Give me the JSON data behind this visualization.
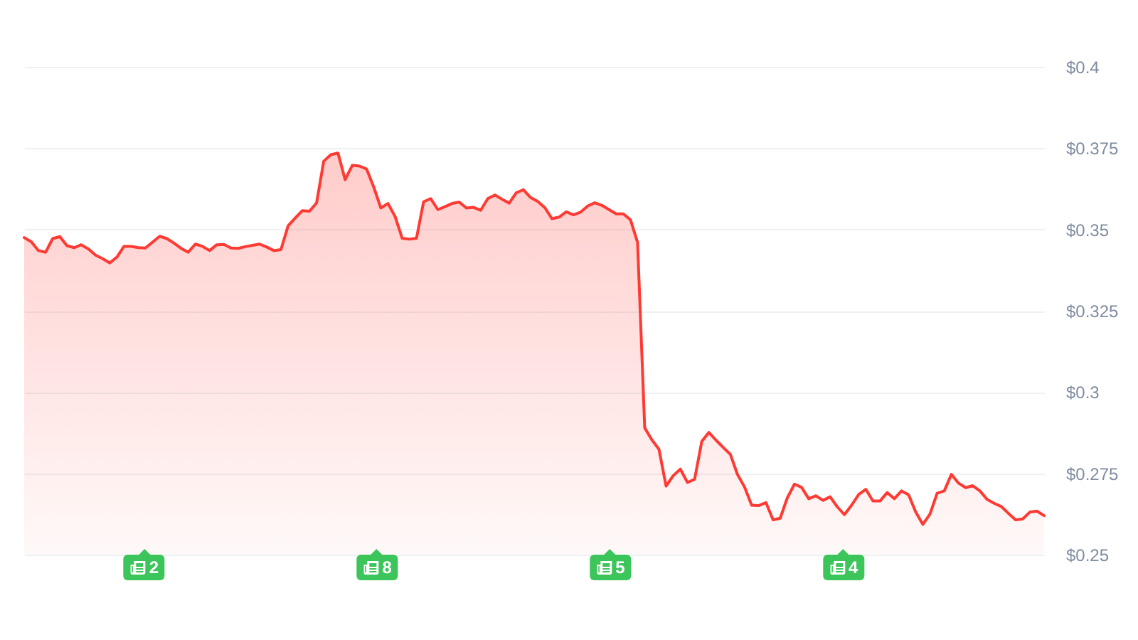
{
  "chart_data": {
    "type": "area",
    "categories": [
      null,
      null,
      null,
      null,
      null,
      null,
      null,
      null,
      null,
      null,
      null,
      null,
      null,
      null,
      null,
      null,
      null,
      null,
      null,
      null,
      null,
      null,
      null,
      null,
      null,
      null,
      null,
      null,
      null,
      null,
      null,
      null,
      null,
      null,
      null,
      null,
      null,
      null,
      null,
      null,
      null,
      null,
      null,
      null,
      null,
      null,
      null,
      null,
      null,
      null,
      null,
      null,
      null,
      null,
      null,
      null,
      null,
      null,
      null,
      null,
      null,
      null,
      null,
      null,
      null,
      null,
      null,
      null,
      null,
      null,
      null,
      null,
      null,
      null,
      null,
      null,
      null,
      null,
      null,
      null,
      null,
      null,
      null,
      null,
      null,
      null,
      null,
      null,
      null,
      null,
      null,
      null,
      null,
      null,
      null,
      null,
      null,
      null,
      null,
      null,
      null,
      null,
      null,
      null,
      null,
      null,
      null,
      null,
      null,
      null,
      null,
      null,
      null,
      null,
      null,
      null,
      null,
      null,
      null,
      null,
      null,
      null,
      null,
      null,
      null,
      null,
      null,
      null,
      null,
      null,
      null,
      null,
      null,
      null,
      null,
      null,
      null,
      null,
      null,
      null,
      null,
      null,
      null,
      null
    ],
    "values": [
      0.3475,
      0.3462,
      0.3435,
      0.343,
      0.3472,
      0.3478,
      0.345,
      0.3444,
      0.3453,
      0.344,
      0.3421,
      0.341,
      0.3397,
      0.3415,
      0.3448,
      0.3448,
      0.3444,
      0.3443,
      0.3461,
      0.3479,
      0.3472,
      0.3458,
      0.3442,
      0.343,
      0.3455,
      0.3448,
      0.3435,
      0.3453,
      0.3454,
      0.3443,
      0.3442,
      0.3447,
      0.3451,
      0.3455,
      0.3446,
      0.3435,
      0.3438,
      0.3511,
      0.3535,
      0.3558,
      0.3556,
      0.3582,
      0.371,
      0.373,
      0.3735,
      0.3653,
      0.3697,
      0.3695,
      0.3686,
      0.3631,
      0.3566,
      0.358,
      0.354,
      0.3473,
      0.347,
      0.3473,
      0.3585,
      0.3595,
      0.3561,
      0.357,
      0.358,
      0.3584,
      0.3566,
      0.3568,
      0.3559,
      0.3595,
      0.3606,
      0.3593,
      0.3581,
      0.3613,
      0.3622,
      0.3598,
      0.3586,
      0.3567,
      0.3533,
      0.3538,
      0.3554,
      0.3545,
      0.3553,
      0.3572,
      0.3582,
      0.3574,
      0.3561,
      0.3548,
      0.3548,
      0.353,
      0.346,
      0.289,
      0.2853,
      0.2824,
      0.2711,
      0.2743,
      0.2763,
      0.2722,
      0.2732,
      0.2848,
      0.2876,
      0.2852,
      0.283,
      0.2809,
      0.2747,
      0.2708,
      0.2652,
      0.2651,
      0.266,
      0.2607,
      0.2612,
      0.2675,
      0.2717,
      0.2707,
      0.2672,
      0.2681,
      0.2667,
      0.2678,
      0.2647,
      0.2623,
      0.2652,
      0.2685,
      0.2701,
      0.2665,
      0.2665,
      0.2691,
      0.2672,
      0.2696,
      0.2684,
      0.2631,
      0.2593,
      0.2625,
      0.2689,
      0.2696,
      0.2747,
      0.272,
      0.2706,
      0.2712,
      0.2696,
      0.267,
      0.2658,
      0.2648,
      0.2627,
      0.2607,
      0.261,
      0.2631,
      0.2634,
      0.262
    ],
    "color": "#ff3a33",
    "ylim": [
      0.25,
      0.4
    ],
    "yticks": [
      {
        "value": 0.25,
        "label": "$0.25"
      },
      {
        "value": 0.275,
        "label": "$0.275"
      },
      {
        "value": 0.3,
        "label": "$0.3"
      },
      {
        "value": 0.325,
        "label": "$0.325"
      },
      {
        "value": 0.35,
        "label": "$0.35"
      },
      {
        "value": 0.375,
        "label": "$0.375"
      },
      {
        "value": 0.4,
        "label": "$0.4"
      }
    ],
    "grid": "y",
    "tick_labels": "y",
    "annotations": [
      "2",
      "8",
      "5",
      "4"
    ]
  }
}
